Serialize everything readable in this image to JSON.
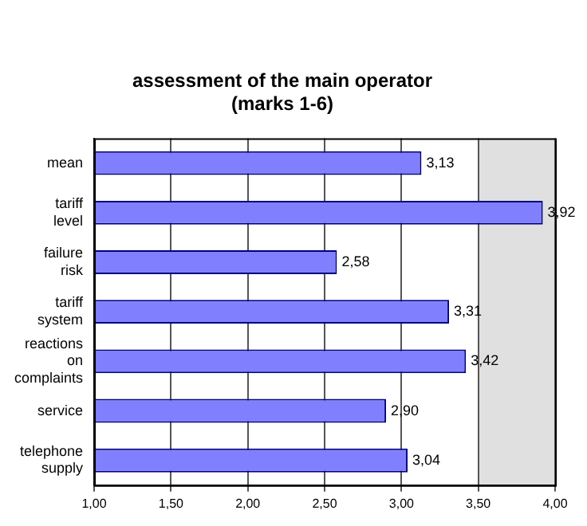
{
  "chart_data": {
    "type": "bar",
    "orientation": "horizontal",
    "title": "assessment of the main operator\n(marks 1-6)",
    "categories": [
      "mean",
      "tariff level",
      "failure risk",
      "tariff system",
      "reactions on complaints",
      "service",
      "telephone supply"
    ],
    "values": [
      3.13,
      3.92,
      2.58,
      3.31,
      3.42,
      2.9,
      3.04
    ],
    "value_labels": [
      "3,13",
      "3,92",
      "2,58",
      "3,31",
      "3,42",
      "2,90",
      "3,04"
    ],
    "color": "#8080ff",
    "xlim": [
      1,
      4
    ],
    "xticks": [
      {
        "value": 1,
        "label": "1,00"
      },
      {
        "value": 1.5,
        "label": "1,50"
      },
      {
        "value": 2,
        "label": "2,00"
      },
      {
        "value": 2.5,
        "label": "2,50"
      },
      {
        "value": 3,
        "label": "3,00"
      },
      {
        "value": 3.5,
        "label": "3,50"
      },
      {
        "value": 4,
        "label": "4,00"
      }
    ],
    "bands": [
      {
        "axis": "x",
        "from": 3.5,
        "to": 4,
        "color": "#e0e0e0"
      }
    ],
    "grid": "x",
    "legend": false
  }
}
